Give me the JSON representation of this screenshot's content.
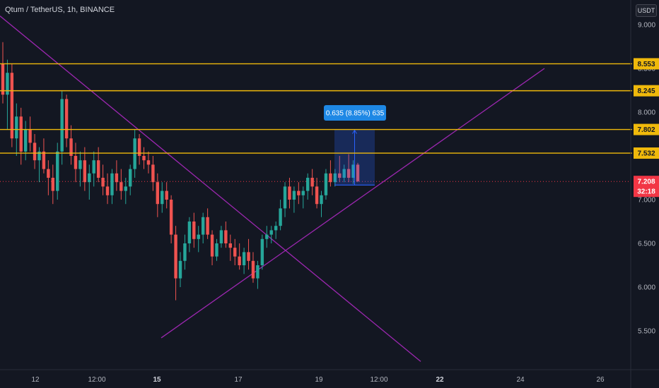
{
  "header": {
    "title": "Qtum / TetherUS, 1h, BINANCE",
    "currency": "USDT"
  },
  "colors": {
    "background": "#131722",
    "up": "#26a69a",
    "down": "#ef5350",
    "level": "#f0b90b",
    "trendline": "#9c27b0",
    "measure": "#2962ff",
    "price_tag": "#f23645"
  },
  "chart_data": {
    "type": "candlestick",
    "symbol": "Qtum / TetherUS",
    "interval": "1h",
    "exchange": "BINANCE",
    "y_ticks": [
      "9.000",
      "8.500",
      "8.000",
      "7.500",
      "7.000",
      "6.500",
      "6.000",
      "5.500"
    ],
    "y_tick_values": [
      9.0,
      8.5,
      8.0,
      7.5,
      7.0,
      6.5,
      6.0,
      5.5
    ],
    "ylim": [
      5.1,
      9.25
    ],
    "x_ticks": [
      {
        "label": "12",
        "bold": false
      },
      {
        "label": "12:00",
        "bold": false
      },
      {
        "label": "15",
        "bold": true
      },
      {
        "label": "17",
        "bold": false
      },
      {
        "label": "19",
        "bold": false
      },
      {
        "label": "12:00",
        "bold": false
      },
      {
        "label": "22",
        "bold": true
      },
      {
        "label": "24",
        "bold": false
      },
      {
        "label": "26",
        "bold": false
      }
    ],
    "horizontal_levels": [
      {
        "label": "8.553",
        "value": 8.553
      },
      {
        "label": "8.245",
        "value": 8.245
      },
      {
        "label": "7.802",
        "value": 7.802
      },
      {
        "label": "7.532",
        "value": 7.532
      }
    ],
    "last_price": {
      "label": "7.208",
      "value": 7.208,
      "countdown": "32:18"
    },
    "measure": {
      "text": "0.635 (8.85%) 635",
      "from": 7.167,
      "to": 7.802
    },
    "trendlines": [
      {
        "name": "descending",
        "from": [
          0,
          9.1
        ],
        "to": [
          595,
          5.15
        ]
      },
      {
        "name": "ascending",
        "from": [
          228,
          5.42
        ],
        "to": [
          770,
          8.5
        ]
      }
    ],
    "candles": [
      [
        8.55,
        8.8,
        8.1,
        8.2
      ],
      [
        8.2,
        8.6,
        7.8,
        8.45
      ],
      [
        8.45,
        8.55,
        7.6,
        7.7
      ],
      [
        7.7,
        8.1,
        7.5,
        7.95
      ],
      [
        7.95,
        8.05,
        7.4,
        7.55
      ],
      [
        7.55,
        7.9,
        7.45,
        7.8
      ],
      [
        7.8,
        7.95,
        7.55,
        7.65
      ],
      [
        7.65,
        7.75,
        7.35,
        7.45
      ],
      [
        7.45,
        7.6,
        7.2,
        7.55
      ],
      [
        7.55,
        7.7,
        7.3,
        7.35
      ],
      [
        7.35,
        7.45,
        7.05,
        7.25
      ],
      [
        7.25,
        7.4,
        6.95,
        7.1
      ],
      [
        7.1,
        7.65,
        7.0,
        7.55
      ],
      [
        7.55,
        8.25,
        7.4,
        8.15
      ],
      [
        8.15,
        8.2,
        7.6,
        7.7
      ],
      [
        7.7,
        7.85,
        7.4,
        7.5
      ],
      [
        7.5,
        7.65,
        7.2,
        7.35
      ],
      [
        7.35,
        7.55,
        7.15,
        7.45
      ],
      [
        7.45,
        7.6,
        7.1,
        7.2
      ],
      [
        7.2,
        7.4,
        7.0,
        7.3
      ],
      [
        7.3,
        7.55,
        7.15,
        7.45
      ],
      [
        7.45,
        7.6,
        7.2,
        7.25
      ],
      [
        7.25,
        7.4,
        7.05,
        7.15
      ],
      [
        7.15,
        7.3,
        6.95,
        7.05
      ],
      [
        7.05,
        7.35,
        6.95,
        7.3
      ],
      [
        7.3,
        7.45,
        7.1,
        7.2
      ],
      [
        7.2,
        7.35,
        7.0,
        7.1
      ],
      [
        7.1,
        7.25,
        6.95,
        7.15
      ],
      [
        7.15,
        7.4,
        7.05,
        7.35
      ],
      [
        7.35,
        7.8,
        7.25,
        7.7
      ],
      [
        7.7,
        7.75,
        7.4,
        7.5
      ],
      [
        7.5,
        7.6,
        7.35,
        7.45
      ],
      [
        7.45,
        7.55,
        7.3,
        7.4
      ],
      [
        7.4,
        7.5,
        7.1,
        7.2
      ],
      [
        7.2,
        7.3,
        6.8,
        6.95
      ],
      [
        6.95,
        7.2,
        6.85,
        7.1
      ],
      [
        7.1,
        7.2,
        6.9,
        7.0
      ],
      [
        7.0,
        7.05,
        6.5,
        6.6
      ],
      [
        6.6,
        6.7,
        5.85,
        6.1
      ],
      [
        6.1,
        6.4,
        6.0,
        6.3
      ],
      [
        6.3,
        6.6,
        6.2,
        6.5
      ],
      [
        6.5,
        6.8,
        6.4,
        6.75
      ],
      [
        6.75,
        6.85,
        6.45,
        6.55
      ],
      [
        6.55,
        6.7,
        6.4,
        6.6
      ],
      [
        6.6,
        6.85,
        6.5,
        6.8
      ],
      [
        6.8,
        6.9,
        6.55,
        6.6
      ],
      [
        6.6,
        6.65,
        6.25,
        6.35
      ],
      [
        6.35,
        6.55,
        6.3,
        6.5
      ],
      [
        6.5,
        6.7,
        6.45,
        6.65
      ],
      [
        6.65,
        6.75,
        6.45,
        6.5
      ],
      [
        6.5,
        6.6,
        6.3,
        6.45
      ],
      [
        6.45,
        6.55,
        6.25,
        6.35
      ],
      [
        6.35,
        6.5,
        6.2,
        6.25
      ],
      [
        6.25,
        6.45,
        6.15,
        6.4
      ],
      [
        6.4,
        6.55,
        6.2,
        6.3
      ],
      [
        6.3,
        6.4,
        6.05,
        6.1
      ],
      [
        6.1,
        6.3,
        5.98,
        6.25
      ],
      [
        6.25,
        6.6,
        6.2,
        6.55
      ],
      [
        6.55,
        6.7,
        6.45,
        6.6
      ],
      [
        6.6,
        6.7,
        6.5,
        6.65
      ],
      [
        6.65,
        6.75,
        6.55,
        6.7
      ],
      [
        6.7,
        7.0,
        6.65,
        6.9
      ],
      [
        6.9,
        7.2,
        6.8,
        7.15
      ],
      [
        7.15,
        7.25,
        6.9,
        7.0
      ],
      [
        7.0,
        7.15,
        6.85,
        7.1
      ],
      [
        7.1,
        7.2,
        6.95,
        7.05
      ],
      [
        7.05,
        7.15,
        6.9,
        7.1
      ],
      [
        7.1,
        7.3,
        7.0,
        7.25
      ],
      [
        7.25,
        7.35,
        7.05,
        7.15
      ],
      [
        7.15,
        7.25,
        6.9,
        6.95
      ],
      [
        6.95,
        7.1,
        6.8,
        7.05
      ],
      [
        7.05,
        7.35,
        7.0,
        7.3
      ],
      [
        7.3,
        7.45,
        7.15,
        7.2
      ],
      [
        7.2,
        7.35,
        7.15,
        7.3
      ],
      [
        7.3,
        7.5,
        7.2,
        7.25
      ],
      [
        7.25,
        7.4,
        7.2,
        7.35
      ],
      [
        7.35,
        7.52,
        7.2,
        7.25
      ],
      [
        7.25,
        7.45,
        7.18,
        7.4
      ],
      [
        7.4,
        7.42,
        7.2,
        7.21
      ]
    ]
  }
}
